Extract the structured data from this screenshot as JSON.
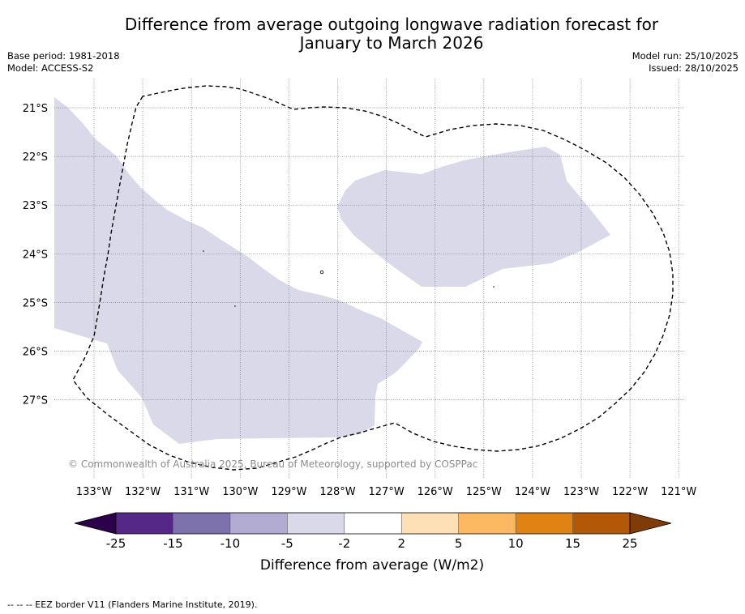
{
  "title_line1": "Difference from average outgoing longwave radiation forecast for",
  "title_line2": "January to March 2026",
  "base_period": "Base period: 1981-2018",
  "model": "Model: ACCESS-S2",
  "model_run": "Model run: 25/10/2025",
  "issued": "Issued: 28/10/2025",
  "copyright": "© Commonwealth of Australia 2025, Bureau of Meteorology, supported by COSPPac",
  "footnote": "--  --  -- EEZ border V11 (Flanders Marine Institute, 2019).",
  "map": {
    "lon_ticks": [
      "133°W",
      "132°W",
      "131°W",
      "130°W",
      "129°W",
      "128°W",
      "127°W",
      "126°W",
      "125°W",
      "124°W",
      "123°W",
      "122°W",
      "121°W"
    ],
    "lat_ticks": [
      "21°S",
      "22°S",
      "23°S",
      "24°S",
      "25°S",
      "26°S",
      "27°S"
    ],
    "fill_color": "#d9d9e9",
    "border_color": "#000000",
    "region_a_label": "-2 to -5 anomaly (west)",
    "region_b_label": "-2 to -5 anomaly (northeast)"
  },
  "colorbar": {
    "label": "Difference from average (W/m2)",
    "tick_labels": [
      "-25",
      "-15",
      "-10",
      "-5",
      "-2",
      "2",
      "5",
      "10",
      "15",
      "25"
    ],
    "colors": [
      "#552887",
      "#7e72ac",
      "#b2abd2",
      "#d9d9ea",
      "#ffffff",
      "#fee0b6",
      "#fdb862",
      "#e08214",
      "#b35807"
    ],
    "under_color": "#2d004b",
    "over_color": "#7f3b08"
  }
}
